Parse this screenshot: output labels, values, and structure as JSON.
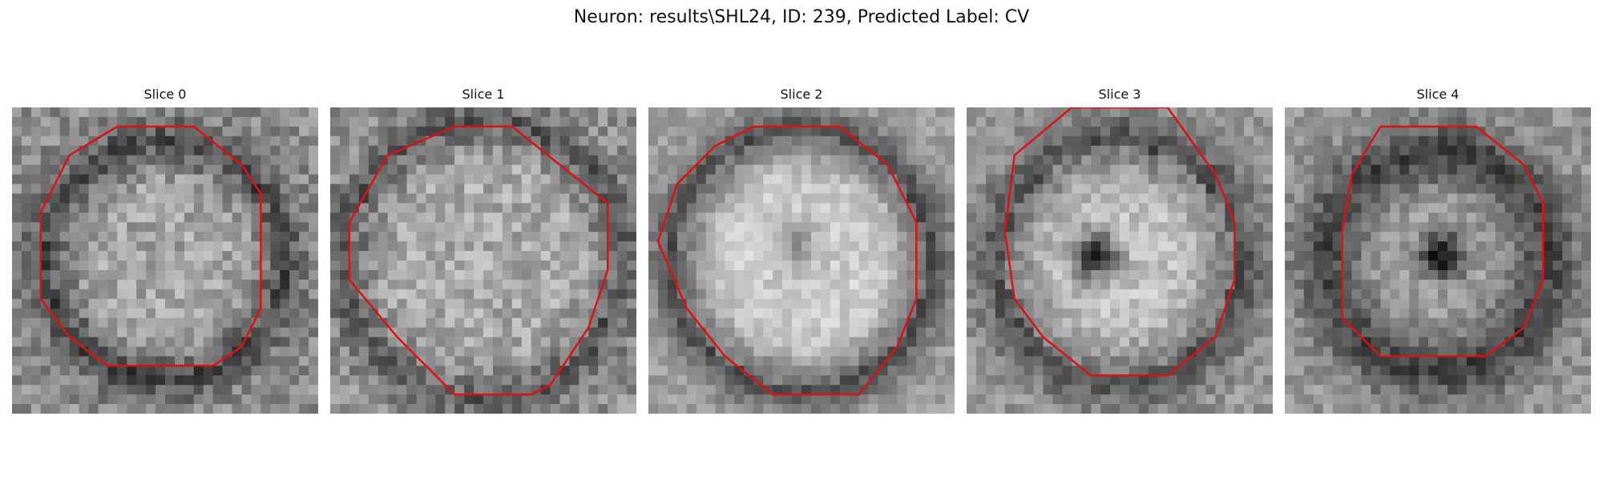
{
  "figure": {
    "title": "Neuron: results\\SHL24, ID: 239, Predicted Label: CV",
    "contour_color": "#e01010"
  },
  "panels": [
    {
      "title": "Slice 0"
    },
    {
      "title": "Slice 1"
    },
    {
      "title": "Slice 2"
    },
    {
      "title": "Slice 3"
    },
    {
      "title": "Slice 4"
    }
  ]
}
